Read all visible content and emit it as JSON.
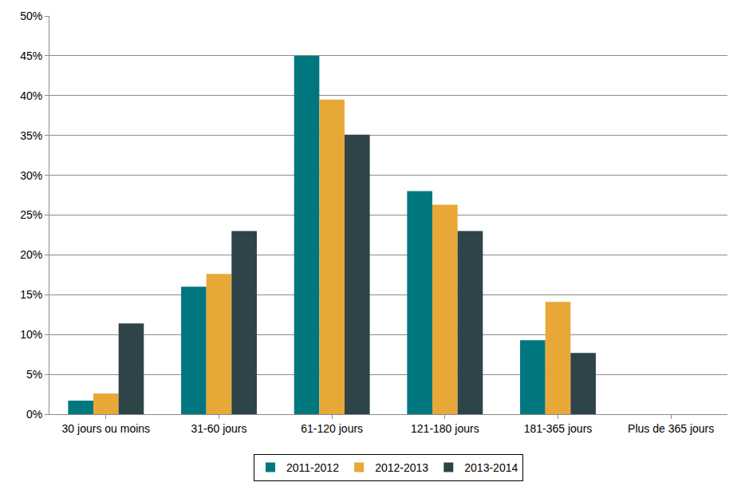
{
  "chart_data": {
    "type": "bar",
    "categories": [
      "30 jours ou moins",
      "31-60 jours",
      "61-120 jours",
      "121-180 jours",
      "181-365 jours",
      "Plus de 365 jours"
    ],
    "series": [
      {
        "name": "2011-2012",
        "color": "#00777f",
        "values": [
          1.7,
          16.0,
          45.0,
          28.0,
          9.3,
          0
        ]
      },
      {
        "name": "2012-2013",
        "color": "#e8a838",
        "values": [
          2.6,
          17.6,
          39.5,
          26.3,
          14.1,
          0
        ]
      },
      {
        "name": "2013-2014",
        "color": "#2e4449",
        "values": [
          11.4,
          23.0,
          35.1,
          23.0,
          7.7,
          0
        ]
      }
    ],
    "ylim": [
      0,
      50
    ],
    "yticks": [
      {
        "value": 0,
        "label": "0%"
      },
      {
        "value": 5,
        "label": "5%"
      },
      {
        "value": 10,
        "label": "10%"
      },
      {
        "value": 15,
        "label": "15%"
      },
      {
        "value": 20,
        "label": "20%"
      },
      {
        "value": 25,
        "label": "25%"
      },
      {
        "value": 30,
        "label": "30%"
      },
      {
        "value": 35,
        "label": "35%"
      },
      {
        "value": 40,
        "label": "40%"
      },
      {
        "value": 45,
        "label": "45%"
      },
      {
        "value": 50,
        "label": "50%"
      }
    ],
    "grid": true,
    "legend": "bottom"
  }
}
